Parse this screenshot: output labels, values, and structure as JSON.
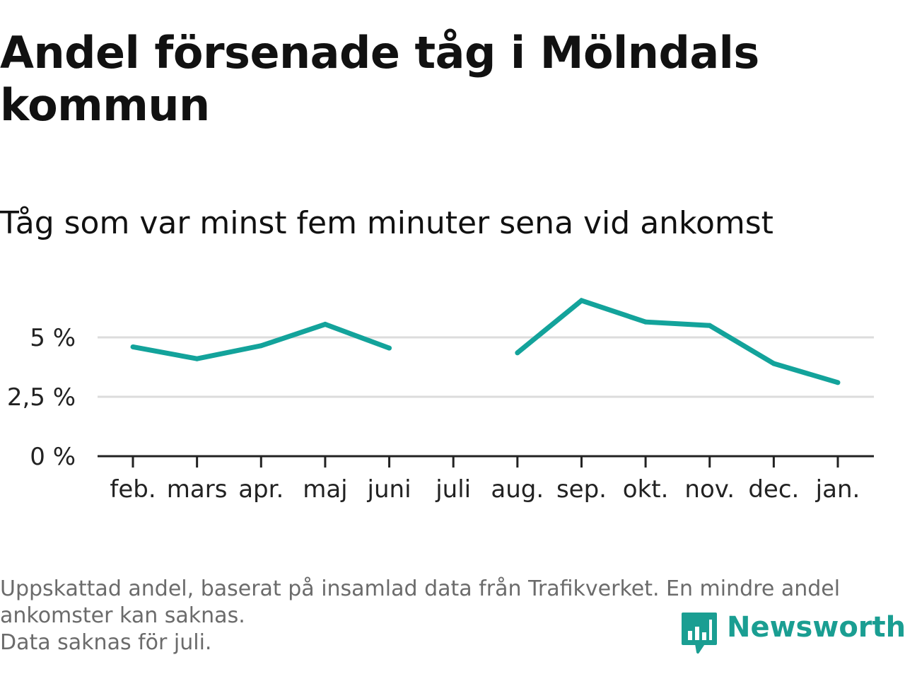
{
  "title": "Andel försenade tåg i Mölndals kommun",
  "subtitle": "Tåg som var minst fem minuter sena vid ankomst",
  "footnote": {
    "line1": "Uppskattad andel, baserat på insamlad data från Trafikverket. En mindre andel",
    "line2": "ankomster kan saknas.",
    "line3": "Data saknas för juli."
  },
  "brand": {
    "name": "Newsworthy",
    "icon": "bar-chart-speech-bubble-icon",
    "color": "#1a9e92"
  },
  "chart_data": {
    "type": "line",
    "categories": [
      "feb.",
      "mars",
      "apr.",
      "maj",
      "juni",
      "juli",
      "aug.",
      "sep.",
      "okt.",
      "nov.",
      "dec.",
      "jan."
    ],
    "series": [
      {
        "values": [
          4.6,
          4.1,
          4.65,
          5.55,
          4.55,
          null,
          4.35,
          6.55,
          5.65,
          5.5,
          3.9,
          3.1
        ],
        "color": "#13a39b"
      }
    ],
    "yticks": [
      0,
      2.5,
      5
    ],
    "ytick_labels": [
      "0 %",
      "2,5 %",
      "5 %"
    ],
    "ylim": [
      0,
      7
    ],
    "grid": true,
    "legend": "none"
  }
}
